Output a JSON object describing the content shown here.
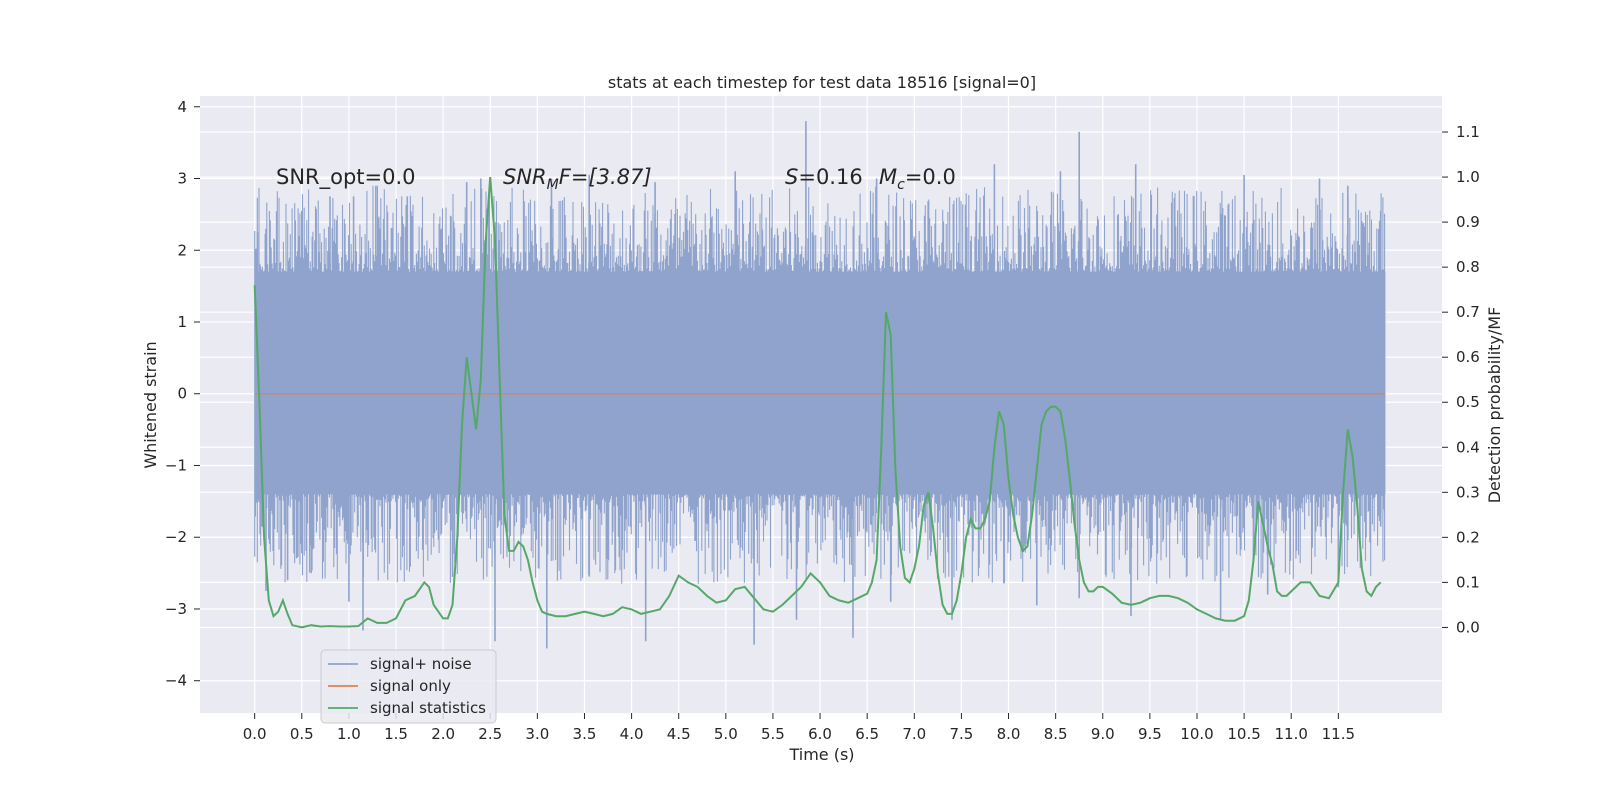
{
  "chart_data": {
    "type": "line",
    "title": "stats at each timestep for test data 18516 [signal=0]",
    "xlabel": "Time (s)",
    "ylabel": "Whitened strain",
    "y2label": "Detection probability/MF",
    "xlim": [
      -0.58,
      12.6
    ],
    "ylim": [
      -4.45,
      4.15
    ],
    "y2lim": [
      -0.19,
      1.18
    ],
    "xticks": [
      "0.0",
      "0.5",
      "1.0",
      "1.5",
      "2.0",
      "2.5",
      "3.0",
      "3.5",
      "4.0",
      "4.5",
      "5.0",
      "5.5",
      "6.0",
      "6.5",
      "7.0",
      "7.5",
      "8.0",
      "8.5",
      "9.0",
      "9.5",
      "10.0",
      "10.5",
      "11.0",
      "11.5"
    ],
    "yticks": [
      "4",
      "3",
      "2",
      "1",
      "0",
      "−1",
      "−2",
      "−3",
      "−4"
    ],
    "y2ticks": [
      "1.1",
      "1.0",
      "0.9",
      "0.8",
      "0.7",
      "0.6",
      "0.5",
      "0.4",
      "0.3",
      "0.2",
      "0.1",
      "0.0"
    ],
    "grid": true,
    "legend_position": "bottom-left",
    "annotations": {
      "snr_opt": "SNR_opt=0.0",
      "snr_mf_name": "SNR",
      "snr_mf_sub": "M",
      "snr_mf_suffix": "F=[3.87]",
      "s_name": "S",
      "s_value": "=0.16",
      "mc_name": "M",
      "mc_sub": "c",
      "mc_value": "=0.0"
    },
    "series": [
      {
        "name": "signal+ noise",
        "color": "#8fa3cc",
        "kind": "noise",
        "t_range": [
          0.0,
          12.0
        ],
        "band": [
          -1.4,
          1.7
        ],
        "peaks": [
          [
            0.03,
            2.25
          ],
          [
            0.12,
            2.3
          ],
          [
            0.5,
            2.55
          ],
          [
            0.8,
            2.75
          ],
          [
            1.05,
            2.75
          ],
          [
            1.3,
            2.9
          ],
          [
            1.62,
            2.75
          ],
          [
            2.25,
            2.95
          ],
          [
            2.4,
            3.0
          ],
          [
            3.15,
            3.0
          ],
          [
            3.55,
            3.05
          ],
          [
            4.25,
            2.95
          ],
          [
            5.1,
            3.1
          ],
          [
            5.85,
            3.8
          ],
          [
            6.6,
            3.0
          ],
          [
            7.85,
            3.2
          ],
          [
            8.55,
            3.1
          ],
          [
            8.75,
            3.65
          ],
          [
            9.35,
            3.2
          ],
          [
            10.5,
            3.05
          ],
          [
            11.3,
            3.0
          ],
          [
            11.6,
            2.9
          ],
          [
            11.95,
            2.55
          ]
        ],
        "troughs": [
          [
            0.12,
            -2.75
          ],
          [
            0.35,
            -2.6
          ],
          [
            0.6,
            -2.5
          ],
          [
            1.0,
            -2.9
          ],
          [
            1.15,
            -3.3
          ],
          [
            2.1,
            -2.55
          ],
          [
            2.55,
            -3.45
          ],
          [
            3.1,
            -3.55
          ],
          [
            4.15,
            -3.45
          ],
          [
            5.3,
            -3.5
          ],
          [
            5.75,
            -3.15
          ],
          [
            6.35,
            -3.4
          ],
          [
            6.75,
            -2.9
          ],
          [
            7.4,
            -3.15
          ],
          [
            8.3,
            -2.95
          ],
          [
            8.75,
            -2.85
          ],
          [
            9.3,
            -3.1
          ],
          [
            10.25,
            -3.15
          ],
          [
            10.75,
            -2.8
          ],
          [
            11.5,
            -2.7
          ],
          [
            11.95,
            -1.85
          ]
        ]
      },
      {
        "name": "signal only",
        "color": "#dd8452",
        "kind": "flat",
        "value": 0.0,
        "t_range": [
          0.0,
          12.0
        ]
      },
      {
        "name": "signal statistics",
        "color": "#55a868",
        "kind": "line",
        "x": [
          0.0,
          0.05,
          0.1,
          0.15,
          0.2,
          0.25,
          0.3,
          0.35,
          0.4,
          0.5,
          0.6,
          0.7,
          0.8,
          0.9,
          1.0,
          1.1,
          1.2,
          1.3,
          1.4,
          1.5,
          1.6,
          1.7,
          1.8,
          1.85,
          1.9,
          2.0,
          2.05,
          2.1,
          2.15,
          2.2,
          2.25,
          2.35,
          2.4,
          2.45,
          2.5,
          2.55,
          2.6,
          2.65,
          2.7,
          2.75,
          2.8,
          2.85,
          2.9,
          2.95,
          3.0,
          3.05,
          3.1,
          3.2,
          3.3,
          3.4,
          3.5,
          3.6,
          3.7,
          3.8,
          3.9,
          4.0,
          4.1,
          4.2,
          4.3,
          4.4,
          4.5,
          4.6,
          4.7,
          4.8,
          4.9,
          5.0,
          5.1,
          5.2,
          5.3,
          5.4,
          5.5,
          5.6,
          5.7,
          5.8,
          5.9,
          6.0,
          6.1,
          6.2,
          6.3,
          6.4,
          6.5,
          6.55,
          6.6,
          6.65,
          6.7,
          6.75,
          6.8,
          6.85,
          6.9,
          6.95,
          7.0,
          7.05,
          7.1,
          7.15,
          7.2,
          7.25,
          7.3,
          7.35,
          7.4,
          7.45,
          7.5,
          7.55,
          7.6,
          7.65,
          7.7,
          7.75,
          7.8,
          7.85,
          7.9,
          7.95,
          8.0,
          8.05,
          8.1,
          8.15,
          8.2,
          8.25,
          8.3,
          8.35,
          8.4,
          8.45,
          8.5,
          8.55,
          8.6,
          8.65,
          8.7,
          8.75,
          8.8,
          8.85,
          8.9,
          8.95,
          9.0,
          9.1,
          9.2,
          9.3,
          9.4,
          9.5,
          9.6,
          9.7,
          9.8,
          9.9,
          10.0,
          10.1,
          10.2,
          10.3,
          10.4,
          10.5,
          10.55,
          10.6,
          10.65,
          10.7,
          10.75,
          10.8,
          10.85,
          10.9,
          10.95,
          11.0,
          11.1,
          11.2,
          11.3,
          11.4,
          11.5,
          11.55,
          11.6,
          11.65,
          11.7,
          11.75,
          11.8,
          11.85,
          11.9,
          11.95
        ],
        "y": [
          0.76,
          0.5,
          0.2,
          0.06,
          0.025,
          0.035,
          0.06,
          0.03,
          0.005,
          0.0,
          0.005,
          0.002,
          0.003,
          0.002,
          0.002,
          0.003,
          0.02,
          0.01,
          0.01,
          0.02,
          0.06,
          0.07,
          0.1,
          0.09,
          0.05,
          0.02,
          0.02,
          0.05,
          0.2,
          0.45,
          0.6,
          0.44,
          0.55,
          0.85,
          1.0,
          0.86,
          0.55,
          0.25,
          0.17,
          0.17,
          0.19,
          0.18,
          0.15,
          0.1,
          0.06,
          0.035,
          0.03,
          0.025,
          0.025,
          0.03,
          0.035,
          0.03,
          0.025,
          0.03,
          0.045,
          0.04,
          0.03,
          0.035,
          0.04,
          0.07,
          0.115,
          0.1,
          0.09,
          0.07,
          0.055,
          0.06,
          0.085,
          0.09,
          0.065,
          0.04,
          0.035,
          0.05,
          0.07,
          0.09,
          0.12,
          0.1,
          0.07,
          0.06,
          0.055,
          0.065,
          0.075,
          0.1,
          0.15,
          0.4,
          0.7,
          0.65,
          0.35,
          0.18,
          0.11,
          0.1,
          0.13,
          0.18,
          0.27,
          0.3,
          0.22,
          0.12,
          0.05,
          0.03,
          0.03,
          0.06,
          0.12,
          0.2,
          0.24,
          0.22,
          0.22,
          0.24,
          0.28,
          0.4,
          0.48,
          0.45,
          0.33,
          0.25,
          0.2,
          0.17,
          0.18,
          0.25,
          0.35,
          0.45,
          0.48,
          0.49,
          0.49,
          0.48,
          0.42,
          0.33,
          0.23,
          0.15,
          0.1,
          0.08,
          0.08,
          0.09,
          0.09,
          0.075,
          0.055,
          0.05,
          0.055,
          0.065,
          0.07,
          0.07,
          0.065,
          0.055,
          0.04,
          0.03,
          0.02,
          0.015,
          0.015,
          0.025,
          0.06,
          0.15,
          0.28,
          0.23,
          0.18,
          0.14,
          0.08,
          0.07,
          0.07,
          0.08,
          0.1,
          0.1,
          0.07,
          0.065,
          0.1,
          0.3,
          0.44,
          0.38,
          0.27,
          0.13,
          0.08,
          0.07,
          0.09,
          0.1
        ]
      }
    ]
  }
}
